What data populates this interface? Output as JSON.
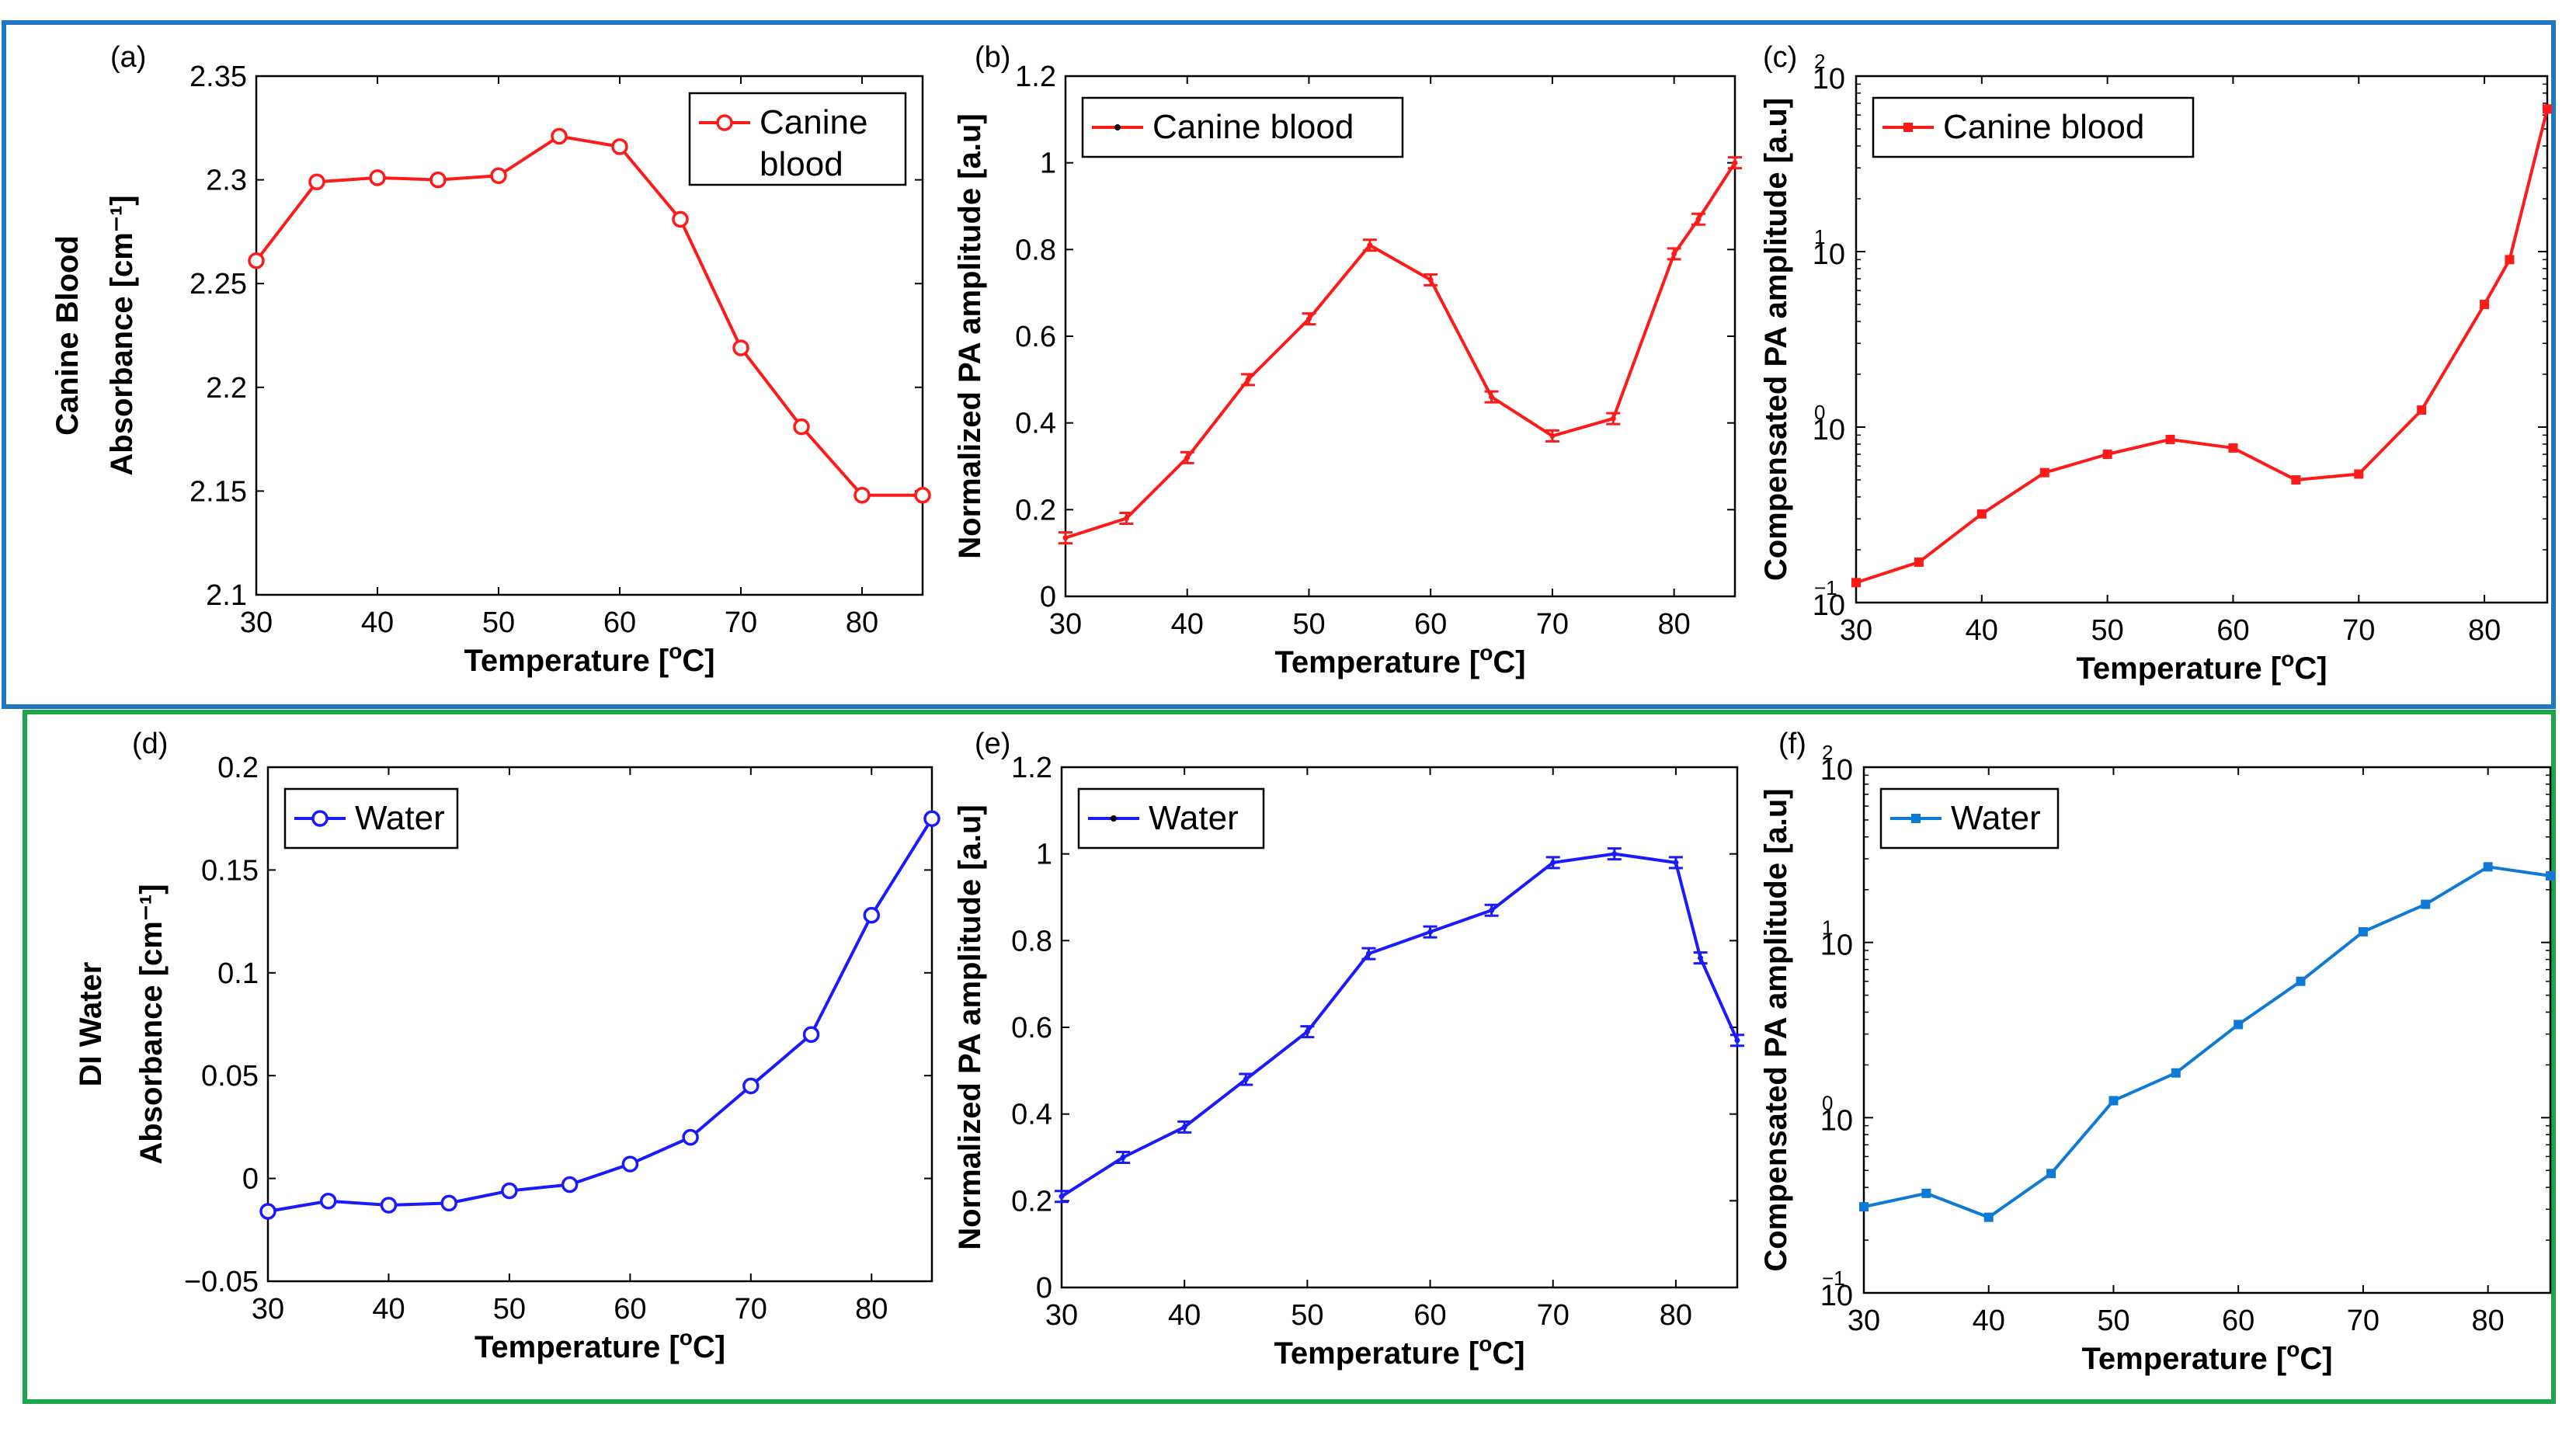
{
  "figure": {
    "top_frame_color": "#1f77c4",
    "bottom_frame_color": "#1aa64a",
    "axis_unit_x": "Temperature [°C]",
    "x_title_prefix": "Temperature [",
    "x_title_sup": "o",
    "x_title_suffix": "C]"
  },
  "chart_data": [
    {
      "id": "a",
      "panel_label": "(a)",
      "type": "line",
      "color": "#ff1a1a",
      "marker": "circle",
      "yscale": "linear",
      "x": [
        30,
        35,
        40,
        45,
        50,
        55,
        60,
        65,
        70,
        75,
        80,
        85
      ],
      "series": [
        {
          "name": "Canine blood",
          "values": [
            2.261,
            2.299,
            2.301,
            2.3,
            2.302,
            2.321,
            2.316,
            2.281,
            2.219,
            2.181,
            2.148,
            2.148
          ]
        }
      ],
      "legend": [
        "Canine",
        "blood"
      ],
      "legend_position": "top-right",
      "xlim": [
        30,
        85
      ],
      "ylim": [
        2.1,
        2.35
      ],
      "xticks": [
        30,
        40,
        50,
        60,
        70,
        80
      ],
      "yticks": [
        2.1,
        2.15,
        2.2,
        2.25,
        2.3,
        2.35
      ],
      "ytick_labels": [
        "2.1",
        "2.15",
        "2.2",
        "2.25",
        "2.3",
        "2.35"
      ],
      "xlabel": "Temperature [°C]",
      "ylabel_lines": [
        "Canine Blood",
        "Absorbance [cm⁻¹]"
      ]
    },
    {
      "id": "b",
      "panel_label": "(b)",
      "type": "line",
      "color": "#ff1a1a",
      "marker": "errorbar",
      "yscale": "linear",
      "x": [
        30,
        35,
        40,
        45,
        50,
        55,
        60,
        65,
        70,
        75,
        80,
        82,
        85
      ],
      "series": [
        {
          "name": "Canine blood",
          "values": [
            0.135,
            0.18,
            0.32,
            0.5,
            0.64,
            0.81,
            0.73,
            0.46,
            0.37,
            0.41,
            0.79,
            0.87,
            1.0
          ]
        }
      ],
      "legend": [
        "Canine blood"
      ],
      "legend_position": "top-left",
      "xlim": [
        30,
        85
      ],
      "ylim": [
        0,
        1.2
      ],
      "xticks": [
        30,
        40,
        50,
        60,
        70,
        80
      ],
      "yticks": [
        0,
        0.2,
        0.4,
        0.6,
        0.8,
        1,
        1.2
      ],
      "ytick_labels": [
        "0",
        "0.2",
        "0.4",
        "0.6",
        "0.8",
        "1",
        "1.2"
      ],
      "xlabel": "Temperature [°C]",
      "ylabel_lines": [
        "Normalized PA amplitude [a.u]"
      ]
    },
    {
      "id": "c",
      "panel_label": "(c)",
      "type": "line",
      "color": "#ff1a1a",
      "marker": "square",
      "yscale": "log",
      "x": [
        30,
        35,
        40,
        45,
        50,
        55,
        60,
        65,
        70,
        75,
        80,
        82,
        85
      ],
      "series": [
        {
          "name": "Canine blood",
          "values": [
            0.13,
            0.17,
            0.32,
            0.55,
            0.7,
            0.85,
            0.76,
            0.5,
            0.54,
            1.25,
            5.0,
            9.0,
            65
          ]
        }
      ],
      "legend": [
        "Canine blood"
      ],
      "legend_position": "top-left",
      "xlim": [
        30,
        85
      ],
      "ylim_exp": [
        -1,
        2
      ],
      "xticks": [
        30,
        40,
        50,
        60,
        70,
        80
      ],
      "ytick_exps": [
        -1,
        0,
        1,
        2
      ],
      "ytick_base": "10",
      "ytick_sups": [
        "−1",
        "0",
        "1",
        "2"
      ],
      "xlabel": "Temperature [°C]",
      "ylabel_lines": [
        "Compensated PA amplitude [a.u]"
      ]
    },
    {
      "id": "d",
      "panel_label": "(d)",
      "type": "line",
      "color": "#1a1aff",
      "marker": "circle",
      "yscale": "linear",
      "x": [
        30,
        35,
        40,
        45,
        50,
        55,
        60,
        65,
        70,
        75,
        80,
        85
      ],
      "series": [
        {
          "name": "Water",
          "values": [
            -0.016,
            -0.011,
            -0.013,
            -0.012,
            -0.006,
            -0.003,
            0.007,
            0.02,
            0.045,
            0.07,
            0.128,
            0.175
          ]
        }
      ],
      "legend": [
        "Water"
      ],
      "legend_position": "top-left",
      "xlim": [
        30,
        85
      ],
      "ylim": [
        -0.05,
        0.2
      ],
      "xticks": [
        30,
        40,
        50,
        60,
        70,
        80
      ],
      "yticks": [
        -0.05,
        0,
        0.05,
        0.1,
        0.15,
        0.2
      ],
      "ytick_labels": [
        "−0.05",
        "0",
        "0.05",
        "0.1",
        "0.15",
        "0.2"
      ],
      "xlabel": "Temperature [°C]",
      "ylabel_lines": [
        "DI Water",
        "Absorbance [cm⁻¹]"
      ]
    },
    {
      "id": "e",
      "panel_label": "(e)",
      "type": "line",
      "color": "#1a1aff",
      "marker": "errorbar",
      "yscale": "linear",
      "x": [
        30,
        35,
        40,
        45,
        50,
        55,
        60,
        65,
        70,
        75,
        80,
        82,
        85
      ],
      "series": [
        {
          "name": "Water",
          "values": [
            0.21,
            0.3,
            0.37,
            0.48,
            0.59,
            0.77,
            0.82,
            0.87,
            0.98,
            1.0,
            0.98,
            0.76,
            0.57
          ]
        }
      ],
      "legend": [
        "Water"
      ],
      "legend_position": "top-left",
      "xlim": [
        30,
        85
      ],
      "ylim": [
        0,
        1.2
      ],
      "xticks": [
        30,
        40,
        50,
        60,
        70,
        80
      ],
      "yticks": [
        0,
        0.2,
        0.4,
        0.6,
        0.8,
        1,
        1.2
      ],
      "ytick_labels": [
        "0",
        "0.2",
        "0.4",
        "0.6",
        "0.8",
        "1",
        "1.2"
      ],
      "xlabel": "Temperature [°C]",
      "ylabel_lines": [
        "Normalized PA amplitude [a.u]"
      ]
    },
    {
      "id": "f",
      "panel_label": "(f)",
      "type": "line",
      "color": "#0f7ad6",
      "marker": "square",
      "yscale": "log",
      "x": [
        30,
        35,
        40,
        45,
        50,
        55,
        60,
        65,
        70,
        75,
        80,
        85
      ],
      "series": [
        {
          "name": "Water",
          "values": [
            0.31,
            0.37,
            0.27,
            0.48,
            1.25,
            1.8,
            3.4,
            6.0,
            11.5,
            16.5,
            27,
            24
          ]
        }
      ],
      "legend": [
        "Water"
      ],
      "legend_position": "top-left",
      "xlim": [
        30,
        85
      ],
      "ylim_exp": [
        -1,
        2
      ],
      "xticks": [
        30,
        40,
        50,
        60,
        70,
        80
      ],
      "ytick_exps": [
        -1,
        0,
        1,
        2
      ],
      "ytick_base": "10",
      "ytick_sups": [
        "−1",
        "0",
        "1",
        "2"
      ],
      "xlabel": "Temperature [°C]",
      "ylabel_lines": [
        "Compensated PA amplitude [a.u]"
      ]
    }
  ]
}
